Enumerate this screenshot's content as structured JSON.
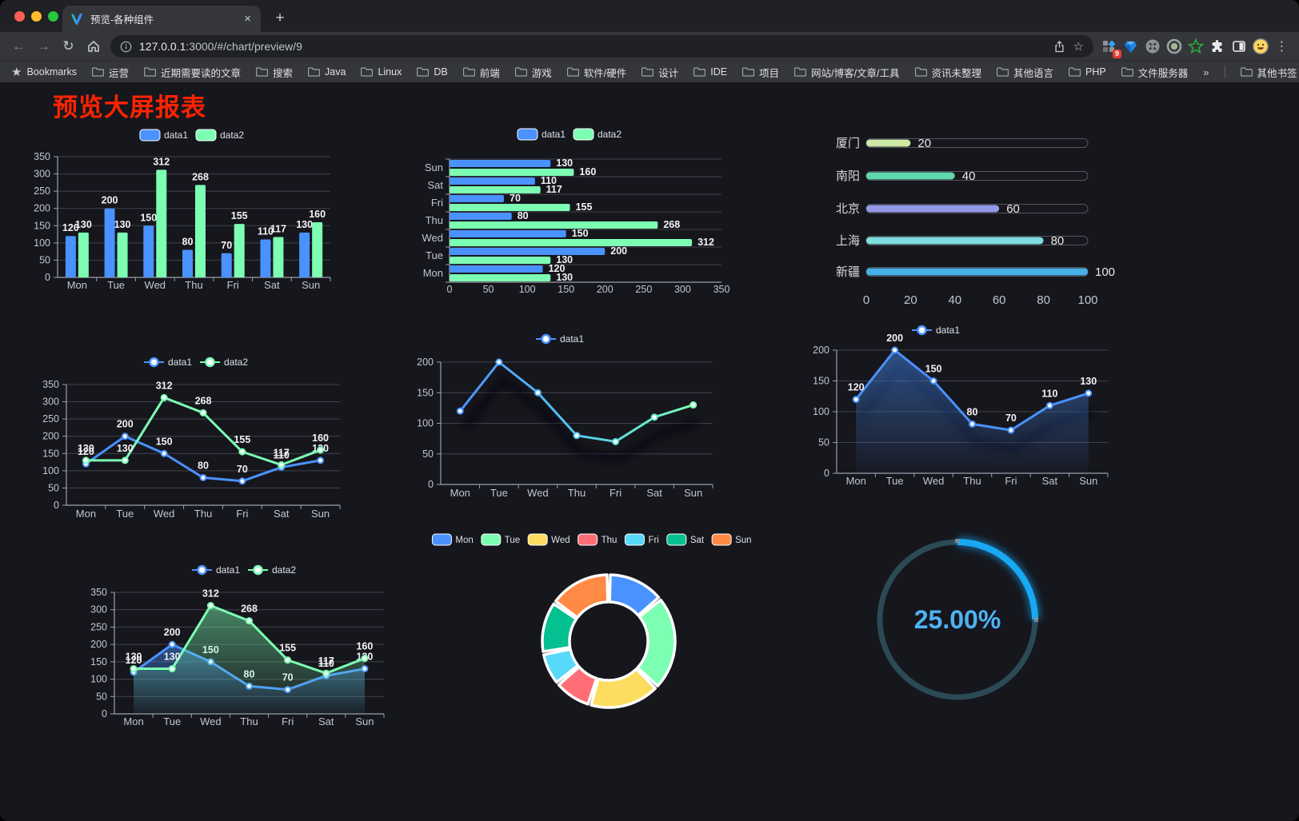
{
  "browser": {
    "tab_title": "预览-各种组件",
    "tab_close": "×",
    "new_tab": "+",
    "url_host": "127.0.0.1",
    "url_rest": ":3000/#/chart/preview/9",
    "extension_badge": "9"
  },
  "bookmarks": {
    "label": "Bookmarks",
    "items": [
      "运营",
      "近期需要读的文章",
      "搜索",
      "Java",
      "Linux",
      "DB",
      "前端",
      "游戏",
      "软件/硬件",
      "设计",
      "IDE",
      "项目",
      "网站/博客/文章/工具",
      "资讯未整理",
      "其他语言",
      "PHP",
      "文件服务器"
    ],
    "overflow_chevron": "»",
    "other_bookmarks": "其他书签"
  },
  "page": {
    "title": "预览大屏报表",
    "title_color": "#ff2400",
    "background": "#16161d"
  },
  "chart_data": [
    {
      "id": "bar-vertical",
      "type": "bar",
      "categories": [
        "Mon",
        "Tue",
        "Wed",
        "Thu",
        "Fri",
        "Sat",
        "Sun"
      ],
      "series": [
        {
          "name": "data1",
          "color": "#4992ff",
          "values": [
            120,
            200,
            150,
            80,
            70,
            110,
            130
          ]
        },
        {
          "name": "data2",
          "color": "#7cffb2",
          "values": [
            130,
            130,
            312,
            268,
            155,
            117,
            160
          ]
        }
      ],
      "ylim": [
        0,
        350
      ],
      "yticks": [
        0,
        50,
        100,
        150,
        200,
        250,
        300,
        350
      ],
      "value_labels": true,
      "legend_position": "top",
      "grid": true
    },
    {
      "id": "bar-horizontal",
      "type": "bar",
      "orientation": "horizontal",
      "categories": [
        "Mon",
        "Tue",
        "Wed",
        "Thu",
        "Fri",
        "Sat",
        "Sun"
      ],
      "series": [
        {
          "name": "data1",
          "color": "#4992ff",
          "values": [
            120,
            200,
            150,
            80,
            70,
            110,
            130
          ]
        },
        {
          "name": "data2",
          "color": "#7cffb2",
          "values": [
            130,
            130,
            312,
            268,
            155,
            117,
            160
          ]
        }
      ],
      "xlim": [
        0,
        350
      ],
      "xticks": [
        0,
        50,
        100,
        150,
        200,
        250,
        300,
        350
      ],
      "value_labels": true,
      "legend_position": "top",
      "grid": true
    },
    {
      "id": "progress-bars",
      "type": "bar",
      "subtype": "progress",
      "max": 100,
      "xticks": [
        0,
        20,
        40,
        60,
        80,
        100
      ],
      "items": [
        {
          "label": "厦门",
          "value": 20,
          "color": "#cde9a6"
        },
        {
          "label": "南阳",
          "value": 40,
          "color": "#5fd8ad"
        },
        {
          "label": "北京",
          "value": 60,
          "color": "#949ae8"
        },
        {
          "label": "上海",
          "value": 80,
          "color": "#7fdde0"
        },
        {
          "label": "新疆",
          "value": 100,
          "color": "#45b1e8"
        }
      ]
    },
    {
      "id": "line-basic",
      "type": "line",
      "categories": [
        "Mon",
        "Tue",
        "Wed",
        "Thu",
        "Fri",
        "Sat",
        "Sun"
      ],
      "series": [
        {
          "name": "data1",
          "color": "#4992ff",
          "values": [
            120,
            200,
            150,
            80,
            70,
            110,
            130
          ]
        },
        {
          "name": "data2",
          "color": "#7cffb2",
          "values": [
            130,
            130,
            312,
            268,
            155,
            117,
            160
          ]
        }
      ],
      "ylim": [
        0,
        350
      ],
      "yticks": [
        0,
        50,
        100,
        150,
        200,
        250,
        300,
        350
      ],
      "value_labels": true,
      "legend_position": "top",
      "grid": true
    },
    {
      "id": "line-gradient",
      "type": "line",
      "categories": [
        "Mon",
        "Tue",
        "Wed",
        "Thu",
        "Fri",
        "Sat",
        "Sun"
      ],
      "series": [
        {
          "name": "data1",
          "color": "#4992ff",
          "gradient": [
            "#4992ff",
            "#53c8f0",
            "#7cffb2"
          ],
          "shadow": true,
          "values": [
            120,
            200,
            150,
            80,
            70,
            110,
            130
          ]
        }
      ],
      "ylim": [
        0,
        200
      ],
      "yticks": [
        0,
        50,
        100,
        150,
        200
      ],
      "value_labels": false,
      "legend_position": "top",
      "grid": true
    },
    {
      "id": "line-area",
      "type": "area",
      "categories": [
        "Mon",
        "Tue",
        "Wed",
        "Thu",
        "Fri",
        "Sat",
        "Sun"
      ],
      "series": [
        {
          "name": "data1",
          "color": "#4992ff",
          "area": true,
          "shadow": true,
          "values": [
            120,
            200,
            150,
            80,
            70,
            110,
            130
          ]
        }
      ],
      "ylim": [
        0,
        200
      ],
      "yticks": [
        0,
        50,
        100,
        150,
        200
      ],
      "value_labels": true,
      "legend_position": "top",
      "grid": true
    },
    {
      "id": "line-area-double",
      "type": "area",
      "categories": [
        "Mon",
        "Tue",
        "Wed",
        "Thu",
        "Fri",
        "Sat",
        "Sun"
      ],
      "series": [
        {
          "name": "data1",
          "color": "#4992ff",
          "area": true,
          "values": [
            120,
            200,
            150,
            80,
            70,
            110,
            130
          ]
        },
        {
          "name": "data2",
          "color": "#7cffb2",
          "area": true,
          "values": [
            130,
            130,
            312,
            268,
            155,
            117,
            160
          ]
        }
      ],
      "ylim": [
        0,
        350
      ],
      "yticks": [
        0,
        50,
        100,
        150,
        200,
        250,
        300,
        350
      ],
      "value_labels": true,
      "legend_position": "top",
      "grid": true
    },
    {
      "id": "donut",
      "type": "pie",
      "categories": [
        "Mon",
        "Tue",
        "Wed",
        "Thu",
        "Fri",
        "Sat",
        "Sun"
      ],
      "values": [
        120,
        200,
        150,
        80,
        70,
        110,
        130
      ],
      "colors": [
        "#4992ff",
        "#7cffb2",
        "#fddd60",
        "#ff6e76",
        "#58d9f9",
        "#05c091",
        "#ff8a45"
      ],
      "legend_position": "top"
    },
    {
      "id": "gauge",
      "type": "gauge",
      "value": 25,
      "max": 100,
      "label": "25.00%",
      "progress_color": "#19a8f3",
      "track_color": "#2b4a55",
      "text_color": "#4db3f3"
    }
  ]
}
